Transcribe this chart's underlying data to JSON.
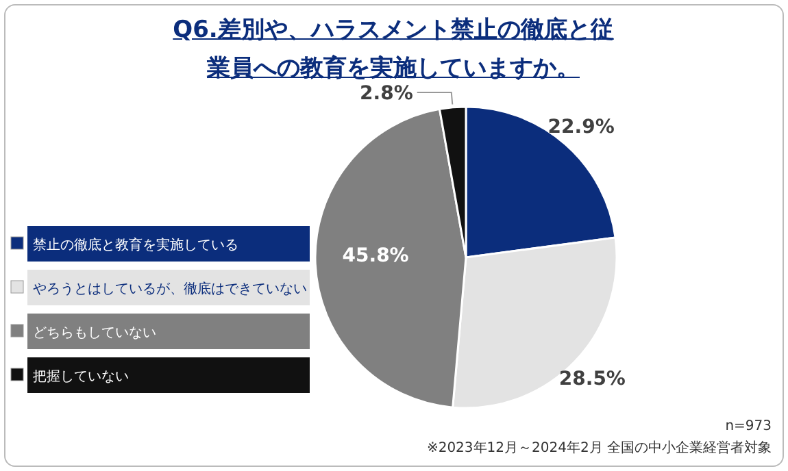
{
  "chart_data": {
    "type": "pie",
    "title": "Q6.差別や、ハラスメント禁止の徹底と従業員への教育を実施していますか。",
    "categories": [
      "禁止の徹底と教育を実施している",
      "やろうとはしているが、徹底はできていない",
      "どちらもしていない",
      "把握していない"
    ],
    "values": [
      22.9,
      28.5,
      45.8,
      2.8
    ],
    "colors": [
      "#0b2d7c",
      "#e3e3e3",
      "#808080",
      "#111111"
    ],
    "value_labels": [
      "22.9%",
      "28.5%",
      "45.8%",
      "2.8%"
    ],
    "legend": "left",
    "annotations": [
      "n=973",
      "※2023年12月～2024年2月 全国の中小企業経営者対象"
    ]
  }
}
